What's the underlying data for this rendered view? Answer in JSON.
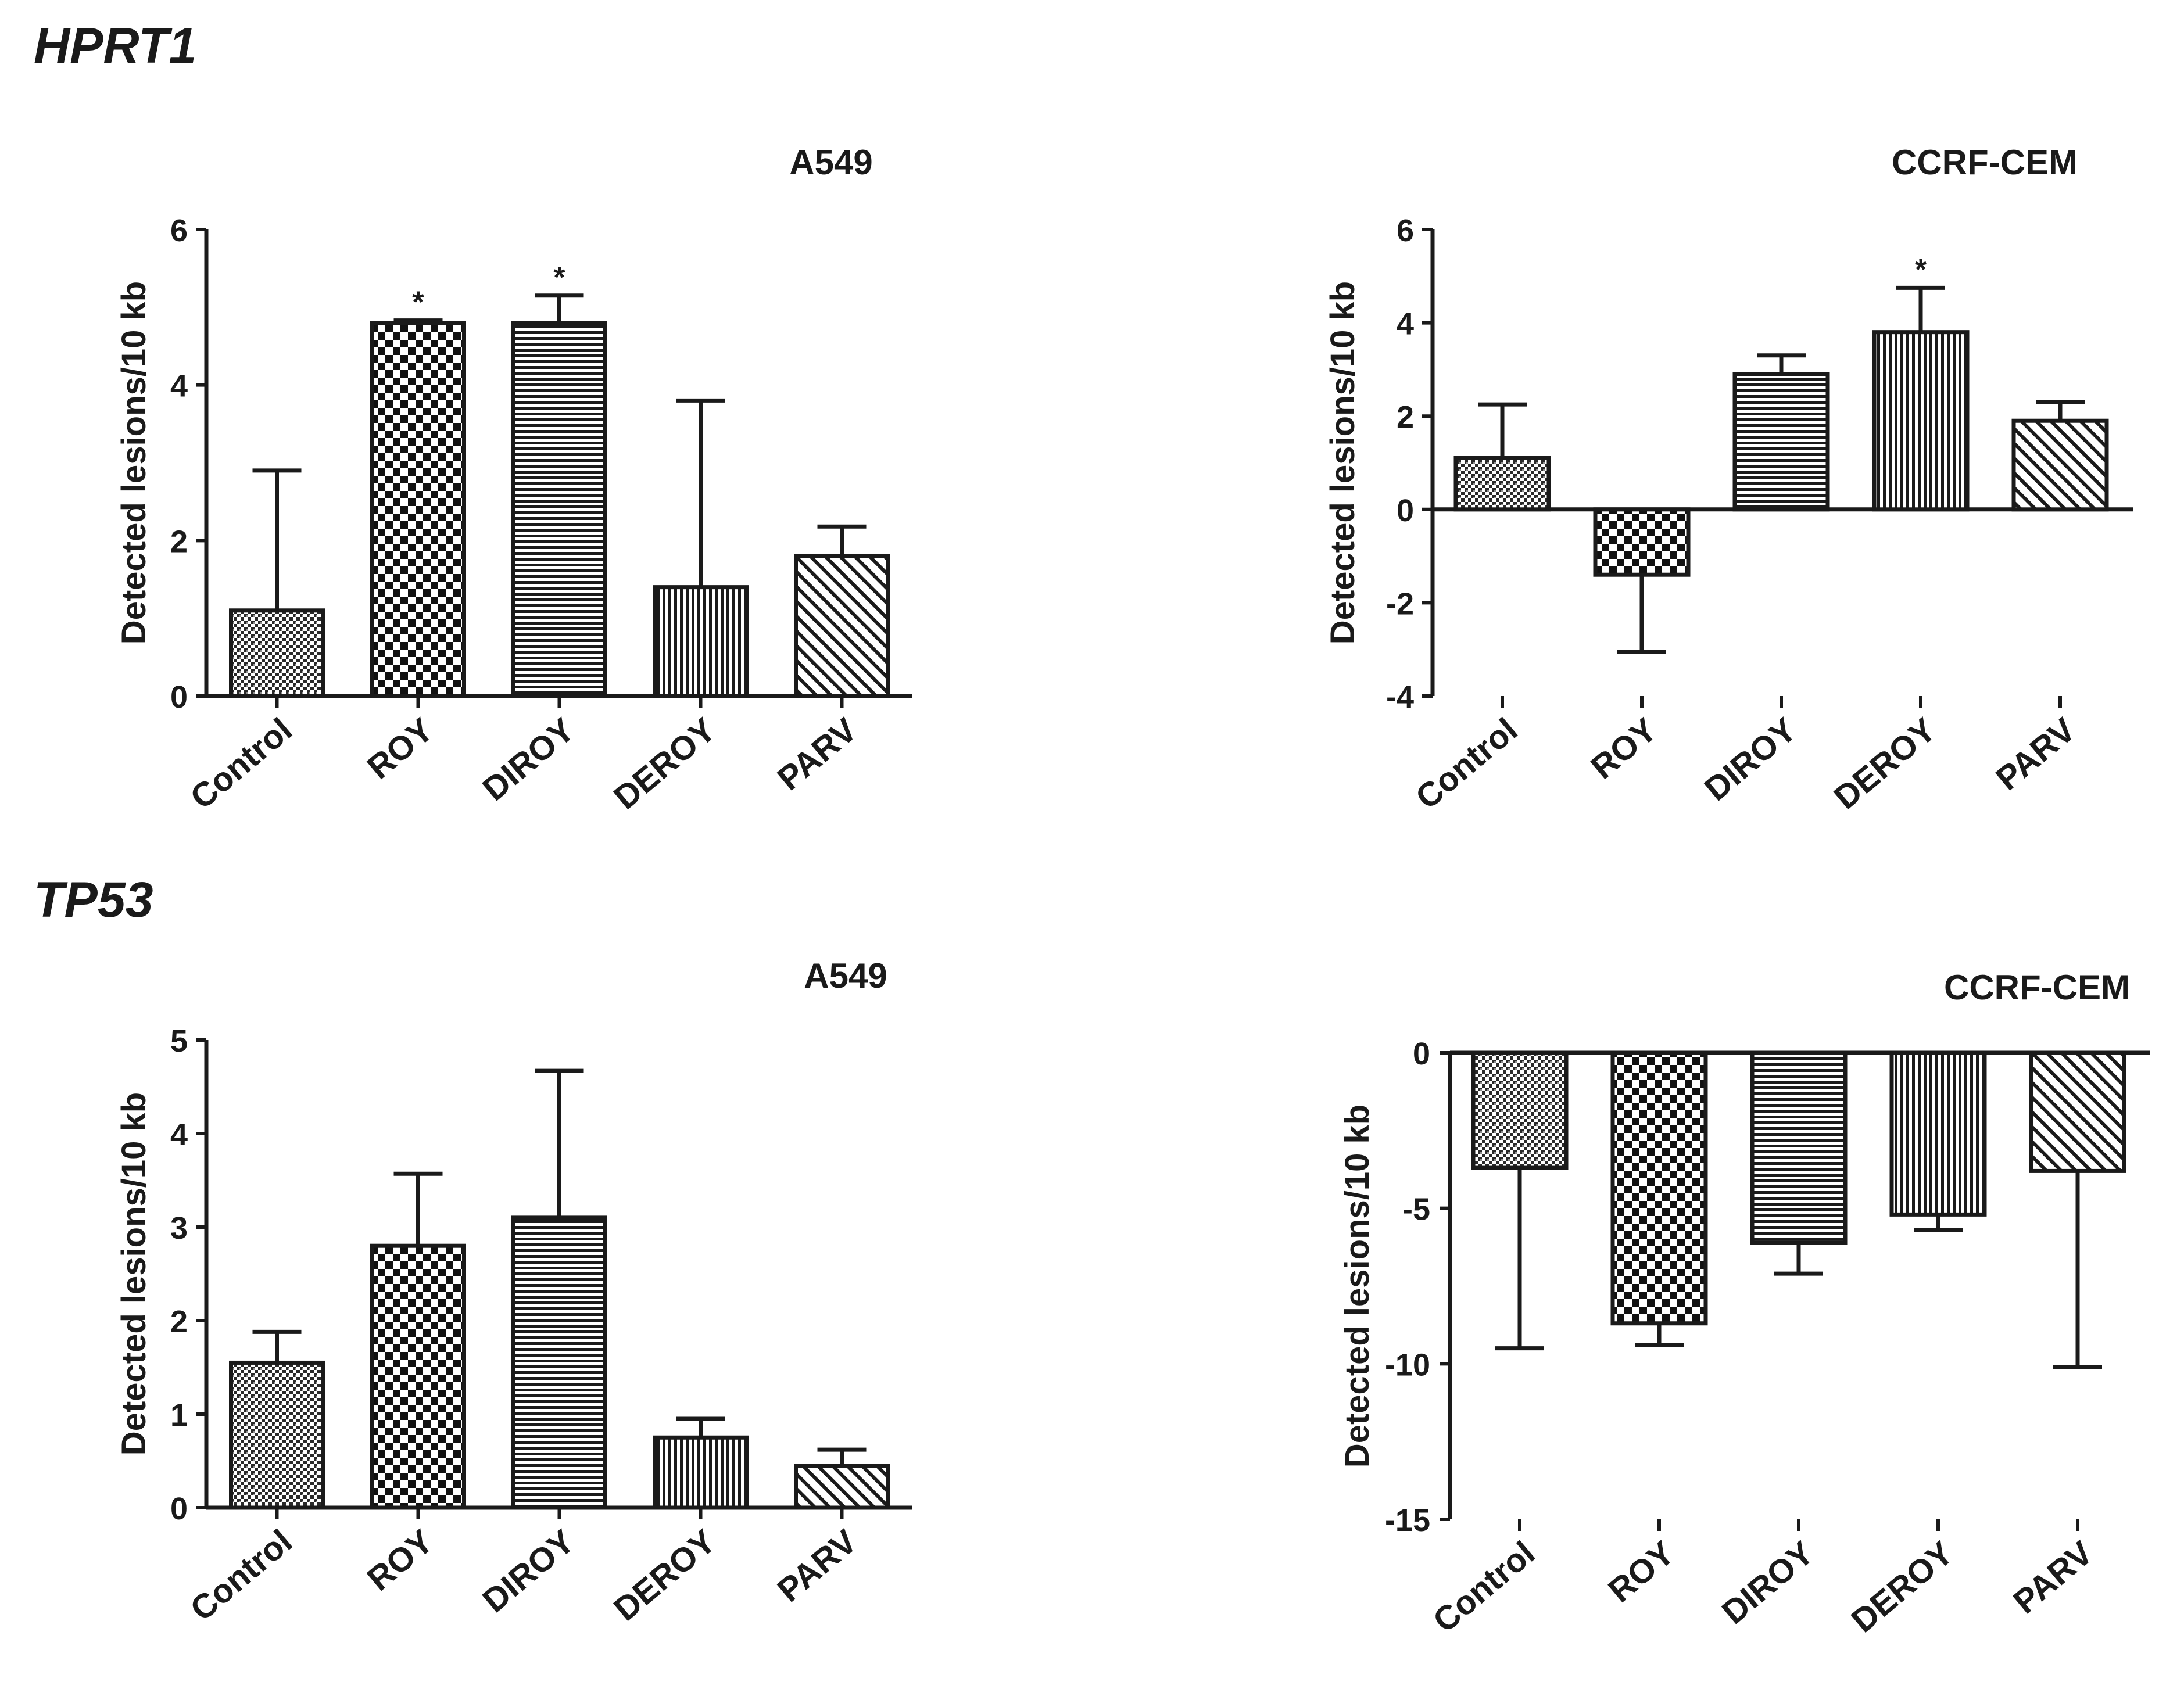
{
  "figure": {
    "gene_labels": [
      "HPRT1",
      "TP53"
    ]
  },
  "chart_data": [
    {
      "type": "bar",
      "gene": "HPRT1",
      "title": "A549",
      "ylabel": "Detected lesions/10 kb",
      "categories": [
        "Control",
        "ROY",
        "DIROY",
        "DEROY",
        "PARV"
      ],
      "values": [
        1.1,
        4.8,
        4.8,
        1.4,
        1.8
      ],
      "errors": [
        1.8,
        0.03,
        0.35,
        2.4,
        0.38
      ],
      "significance": [
        "",
        "*",
        "*",
        "",
        ""
      ],
      "ylim": [
        0,
        6
      ],
      "yticks": [
        0,
        2,
        4,
        6
      ],
      "patterns": [
        "fine",
        "checker",
        "hlines",
        "vlines",
        "diag"
      ]
    },
    {
      "type": "bar",
      "gene": "HPRT1",
      "title": "CCRF-CEM",
      "ylabel": "Detected lesions/10 kb",
      "categories": [
        "Control",
        "ROY",
        "DIROY",
        "DEROY",
        "PARV"
      ],
      "values": [
        1.1,
        -1.4,
        2.9,
        3.8,
        1.9
      ],
      "errors": [
        1.15,
        1.65,
        0.4,
        0.95,
        0.4
      ],
      "significance": [
        "",
        "",
        "",
        "*",
        ""
      ],
      "ylim": [
        -4,
        6
      ],
      "yticks": [
        -4,
        -2,
        0,
        2,
        4,
        6
      ],
      "patterns": [
        "fine",
        "checker",
        "hlines",
        "vlines",
        "diag"
      ]
    },
    {
      "type": "bar",
      "gene": "TP53",
      "title": "A549",
      "ylabel": "Detected lesions/10 kb",
      "categories": [
        "Control",
        "ROY",
        "DIROY",
        "DEROY",
        "PARV"
      ],
      "values": [
        1.55,
        2.8,
        3.1,
        0.75,
        0.45
      ],
      "errors": [
        0.33,
        0.77,
        1.57,
        0.2,
        0.17
      ],
      "significance": [
        "",
        "",
        "",
        "",
        ""
      ],
      "ylim": [
        0,
        5
      ],
      "yticks": [
        0,
        1,
        2,
        3,
        4,
        5
      ],
      "patterns": [
        "fine",
        "checker",
        "hlines",
        "vlines",
        "diag"
      ]
    },
    {
      "type": "bar",
      "gene": "TP53",
      "title": "CCRF-CEM",
      "ylabel": "Detected lesions/10 kb",
      "categories": [
        "Control",
        "ROY",
        "DIROY",
        "DEROY",
        "PARV"
      ],
      "values": [
        -3.7,
        -8.7,
        -6.1,
        -5.2,
        -3.8
      ],
      "errors": [
        5.8,
        0.7,
        1.0,
        0.5,
        6.3
      ],
      "significance": [
        "",
        "",
        "",
        "",
        ""
      ],
      "ylim": [
        -15,
        0
      ],
      "yticks": [
        -15,
        -10,
        -5,
        0
      ],
      "patterns": [
        "fine",
        "checker",
        "hlines",
        "vlines",
        "diag"
      ]
    }
  ]
}
